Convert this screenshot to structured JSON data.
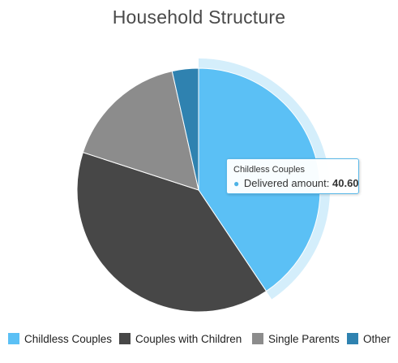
{
  "chart_data": {
    "type": "pie",
    "title": "Household Structure",
    "slices": [
      {
        "name": "Childless Couples",
        "value": 40.6,
        "color": "#5bc0f5"
      },
      {
        "name": "Couples with Children",
        "value": 39.4,
        "color": "#474747"
      },
      {
        "name": "Single Parents",
        "value": 16.5,
        "color": "#8c8c8c"
      },
      {
        "name": "Other",
        "value": 3.5,
        "color": "#2f82b0"
      }
    ],
    "highlighted_slice": "Childless Couples",
    "legend_position": "bottom"
  },
  "tooltip": {
    "title": "Childless Couples",
    "label": "Delivered amount:",
    "value": "40.60"
  },
  "legend": [
    {
      "label": "Childless Couples",
      "color": "#5bc0f5"
    },
    {
      "label": "Couples with Children",
      "color": "#474747"
    },
    {
      "label": "Single Parents",
      "color": "#8c8c8c"
    },
    {
      "label": "Other",
      "color": "#2f82b0"
    }
  ]
}
